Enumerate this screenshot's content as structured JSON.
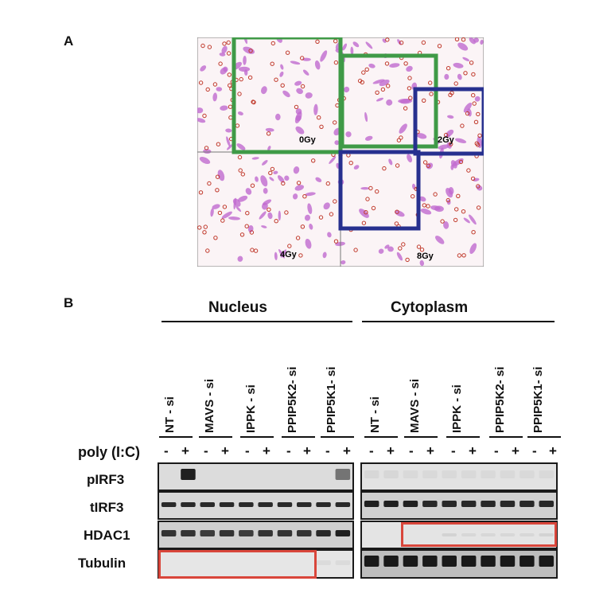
{
  "panels": {
    "a_label": "A",
    "b_label": "B"
  },
  "micrograph": {
    "quadrant_labels": [
      "0Gy",
      "2Gy",
      "4Gy",
      "8Gy"
    ],
    "colors": {
      "cell": "#c06ad0",
      "rbc": "#c0392b",
      "green_box": "#3f9a47",
      "blue_box": "#27308f"
    }
  },
  "blot": {
    "sections": [
      "Nucleus",
      "Cytoplasm"
    ],
    "lanes": [
      "NT - si",
      "MAVS - si",
      "IPPK - si",
      "PPIP5K2- si",
      "PPIP5K1- si"
    ],
    "treatment_label": "poly (I:C)",
    "signs": [
      "-",
      "+"
    ],
    "rows": [
      "pIRF3",
      "tIRF3",
      "HDAC1",
      "Tubulin"
    ],
    "highlight_color": "#d9463b"
  }
}
